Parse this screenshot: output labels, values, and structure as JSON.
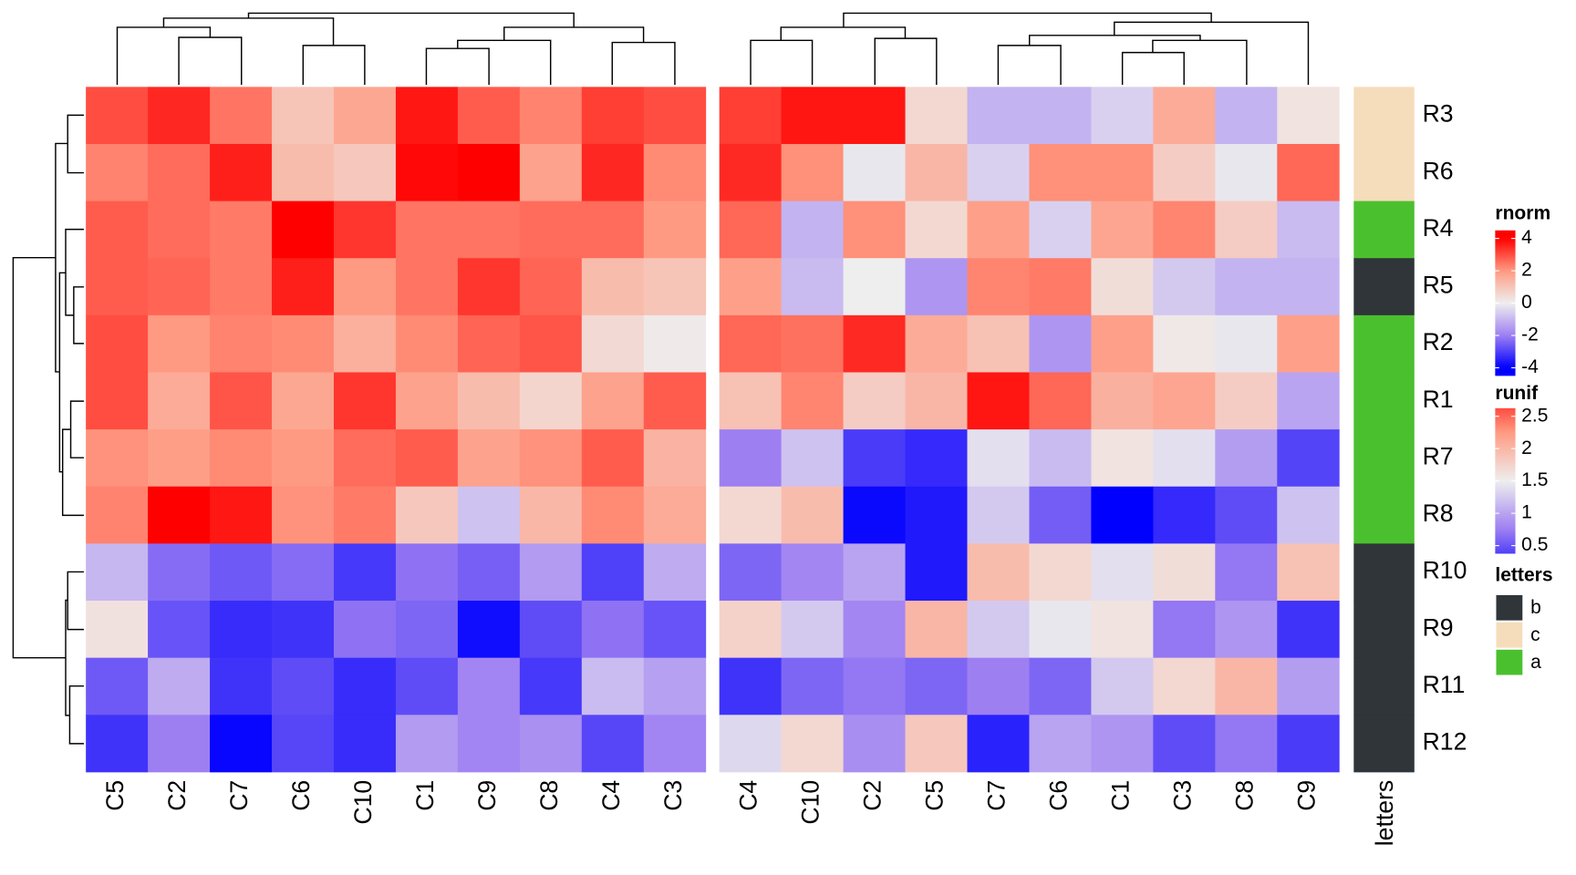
{
  "chart_data": [
    {
      "type": "heatmap",
      "name": "rnorm",
      "rows": [
        "R3",
        "R6",
        "R4",
        "R5",
        "R2",
        "R1",
        "R7",
        "R8",
        "R10",
        "R9",
        "R11",
        "R12"
      ],
      "columns": [
        "C5",
        "C2",
        "C7",
        "C6",
        "C10",
        "C1",
        "C9",
        "C8",
        "C4",
        "C3"
      ],
      "values": [
        [
          3,
          3.5,
          2.5,
          1,
          1.7,
          3.7,
          2.8,
          2.3,
          3.2,
          3
        ],
        [
          2.3,
          2.6,
          3.6,
          1.2,
          0.9,
          3.9,
          4.2,
          1.8,
          3.5,
          2.2
        ],
        [
          2.8,
          2.6,
          2.4,
          4.3,
          3.3,
          2.5,
          2.5,
          2.6,
          2.6,
          2
        ],
        [
          2.8,
          2.7,
          2.4,
          3.6,
          2,
          2.5,
          3.3,
          2.7,
          1.2,
          1
        ],
        [
          3,
          2,
          2.3,
          2.2,
          1.5,
          2.2,
          2.7,
          2.9,
          0.5,
          0.1
        ],
        [
          3,
          1.6,
          2.9,
          1.7,
          3.3,
          1.8,
          1.2,
          0.6,
          1.8,
          2.8
        ],
        [
          2.1,
          1.9,
          2.2,
          2,
          2.6,
          2.8,
          1.8,
          2.1,
          2.8,
          1.4
        ],
        [
          2.3,
          4.1,
          3.7,
          2.1,
          2.4,
          0.9,
          -0.8,
          1.3,
          2.2,
          1.6
        ],
        [
          -1,
          -2.3,
          -2.6,
          -2.3,
          -3.1,
          -2.2,
          -2.5,
          -1.5,
          -3,
          -1.2
        ],
        [
          0.3,
          -2.7,
          -3.3,
          -3.2,
          -2.2,
          -2.4,
          -3.8,
          -2.8,
          -2.2,
          -2.7
        ],
        [
          -2.6,
          -1.2,
          -3.2,
          -2.8,
          -3.3,
          -2.8,
          -1.9,
          -3.1,
          -0.9,
          -1.4
        ],
        [
          -3.2,
          -2,
          -3.9,
          -2.9,
          -3.3,
          -1.5,
          -1.9,
          -1.7,
          -2.9,
          -1.9
        ]
      ],
      "ticks": [
        -4,
        -2,
        0,
        2,
        4
      ],
      "color_stops": [
        {
          "value": -4,
          "color": "#0000ff"
        },
        {
          "value": -2,
          "color": "#9e7ff2"
        },
        {
          "value": 0,
          "color": "#eeeeee"
        },
        {
          "value": 2,
          "color": "#ff9a82"
        },
        {
          "value": 4,
          "color": "#ff0000"
        }
      ]
    },
    {
      "type": "heatmap",
      "name": "runif",
      "columns": [
        "C4",
        "C10",
        "C2",
        "C5",
        "C7",
        "C6",
        "C1",
        "C3",
        "C8",
        "C9"
      ],
      "values": [
        [
          2.7,
          2.9,
          2.9,
          1.7,
          1.1,
          1.1,
          1.3,
          2.1,
          1.1,
          1.6
        ],
        [
          2.8,
          2.3,
          1.45,
          2,
          1.3,
          2.3,
          2.3,
          1.8,
          1.45,
          2.5
        ],
        [
          2.5,
          1.1,
          2.3,
          1.7,
          2.2,
          1.3,
          2.15,
          2.35,
          1.8,
          1.15
        ],
        [
          2.2,
          1.15,
          1.5,
          0.9,
          2.35,
          2.4,
          1.65,
          1.25,
          1.1,
          1.1
        ],
        [
          2.5,
          2.45,
          2.8,
          2.1,
          1.9,
          0.9,
          2.2,
          1.55,
          1.45,
          2.2
        ],
        [
          1.9,
          2.35,
          1.8,
          2,
          2.9,
          2.5,
          2.05,
          2.15,
          1.8,
          1
        ],
        [
          0.75,
          1.2,
          0.35,
          0.25,
          1.4,
          1.15,
          1.6,
          1.4,
          0.95,
          0.4
        ],
        [
          1.7,
          1.95,
          0.05,
          0.15,
          1.25,
          0.55,
          0,
          0.25,
          0.45,
          1.2
        ],
        [
          0.6,
          0.8,
          1,
          0.15,
          1.95,
          1.7,
          1.4,
          1.65,
          0.7,
          1.9
        ],
        [
          1.75,
          1.25,
          0.8,
          2,
          1.25,
          1.45,
          1.6,
          0.7,
          0.9,
          0.3
        ],
        [
          0.3,
          0.6,
          0.7,
          0.6,
          0.75,
          0.6,
          1.25,
          1.7,
          2,
          0.95
        ],
        [
          1.35,
          1.7,
          0.85,
          1.85,
          0.2,
          1,
          0.9,
          0.45,
          0.7,
          0.35
        ]
      ],
      "ticks": [
        0.5,
        1,
        1.5,
        2,
        2.5
      ],
      "color_stops": [
        {
          "value": 0,
          "color": "#0000ff"
        },
        {
          "value": 0.75,
          "color": "#9e7ff2"
        },
        {
          "value": 1.5,
          "color": "#eeeeee"
        },
        {
          "value": 2.25,
          "color": "#ff9a82"
        },
        {
          "value": 3,
          "color": "#ff0000"
        }
      ]
    },
    {
      "type": "annotation",
      "name": "letters",
      "values": [
        "c",
        "c",
        "a",
        "b",
        "a",
        "a",
        "a",
        "a",
        "b",
        "b",
        "b",
        "b"
      ],
      "levels": [
        "b",
        "c",
        "a"
      ],
      "colors": [
        "#2f3538",
        "#f5dcbb",
        "#4bc02e"
      ]
    }
  ]
}
